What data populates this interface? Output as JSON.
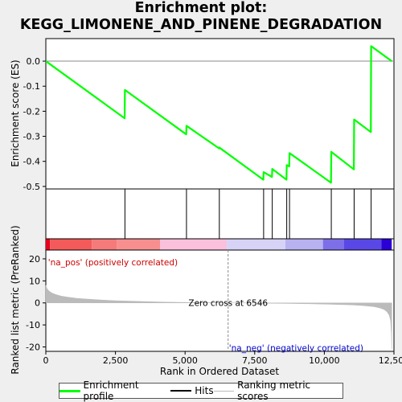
{
  "title_lines": [
    "Enrichment plot:",
    "KEGG_LIMONENE_AND_PINENE_DEGRADATION"
  ],
  "colors": {
    "es_line": "#00ff00",
    "hits": "#000000",
    "metric": "#bbbbbb",
    "pos_label": "#cc0000",
    "neg_label": "#0000cc",
    "zero_line": "#888888"
  },
  "chart_data": {
    "type": "line",
    "x_label": "Rank in Ordered Dataset",
    "y_label_es": "Enrichment score (ES)",
    "y_label_metric": "Ranked list metric (PreRanked)",
    "xlim": [
      0,
      12500
    ],
    "x_ticks": [
      0,
      2500,
      5000,
      7500,
      10000,
      12500
    ],
    "x_tick_labels": [
      "0",
      "2,500",
      "5,000",
      "7,500",
      "10,000",
      "12,500"
    ],
    "es_ylim": [
      -0.51,
      0.09
    ],
    "es_ticks": [
      0.0,
      -0.1,
      -0.2,
      -0.3,
      -0.4,
      -0.5
    ],
    "es_tick_labels": [
      "0.0",
      "-0.1",
      "-0.2",
      "-0.3",
      "-0.4",
      "-0.5"
    ],
    "metric_ylim": [
      -22,
      24
    ],
    "metric_ticks": [
      20,
      10,
      0,
      -10,
      -20
    ],
    "metric_tick_labels": [
      "20",
      "10",
      "0",
      "-10",
      "-20"
    ],
    "n_genes": 12420,
    "zero_cross": 6546,
    "hits": [
      2840,
      5050,
      6230,
      7820,
      8130,
      8650,
      8750,
      10250,
      11070,
      11680
    ],
    "es_curve": [
      [
        0,
        0.0
      ],
      [
        2830,
        -0.228
      ],
      [
        2840,
        -0.115
      ],
      [
        5040,
        -0.292
      ],
      [
        5050,
        -0.258
      ],
      [
        6220,
        -0.348
      ],
      [
        6230,
        -0.345
      ],
      [
        7810,
        -0.473
      ],
      [
        7820,
        -0.443
      ],
      [
        8120,
        -0.462
      ],
      [
        8130,
        -0.43
      ],
      [
        8640,
        -0.473
      ],
      [
        8650,
        -0.415
      ],
      [
        8740,
        -0.42
      ],
      [
        8750,
        -0.367
      ],
      [
        10240,
        -0.485
      ],
      [
        10250,
        -0.362
      ],
      [
        11060,
        -0.432
      ],
      [
        11070,
        -0.233
      ],
      [
        11670,
        -0.283
      ],
      [
        11680,
        0.06
      ],
      [
        12420,
        0.0
      ]
    ],
    "metric_profile": [
      [
        0,
        8.0
      ],
      [
        40,
        6.5
      ],
      [
        100,
        5.5
      ],
      [
        200,
        4.6
      ],
      [
        350,
        3.8
      ],
      [
        550,
        3.1
      ],
      [
        800,
        2.6
      ],
      [
        1100,
        2.1
      ],
      [
        1500,
        1.7
      ],
      [
        2000,
        1.3
      ],
      [
        2500,
        1.0
      ],
      [
        3000,
        0.8
      ],
      [
        3500,
        0.6
      ],
      [
        4000,
        0.45
      ],
      [
        4500,
        0.3
      ],
      [
        5000,
        0.2
      ],
      [
        5500,
        0.12
      ],
      [
        6000,
        0.05
      ],
      [
        6546,
        0.0
      ],
      [
        7000,
        -0.05
      ],
      [
        7500,
        -0.1
      ],
      [
        8000,
        -0.15
      ],
      [
        8500,
        -0.22
      ],
      [
        9000,
        -0.3
      ],
      [
        9500,
        -0.4
      ],
      [
        10000,
        -0.55
      ],
      [
        10500,
        -0.7
      ],
      [
        11000,
        -0.9
      ],
      [
        11400,
        -1.2
      ],
      [
        11800,
        -1.7
      ],
      [
        12000,
        -2.3
      ],
      [
        12150,
        -3.0
      ],
      [
        12250,
        -4.0
      ],
      [
        12330,
        -5.5
      ],
      [
        12380,
        -8.0
      ],
      [
        12410,
        -14.0
      ],
      [
        12420,
        -21.0
      ]
    ],
    "heatmap_segments": [
      [
        0,
        150,
        "#e8001e"
      ],
      [
        150,
        1650,
        "#f45a5a"
      ],
      [
        1650,
        2550,
        "#f57a7a"
      ],
      [
        2550,
        4100,
        "#f78f8f"
      ],
      [
        4100,
        6500,
        "#fbc0dc"
      ],
      [
        6500,
        8600,
        "#d6d3f6"
      ],
      [
        8600,
        9950,
        "#b8b2f0"
      ],
      [
        9950,
        10700,
        "#7d6fe8"
      ],
      [
        10700,
        12050,
        "#5a48e6"
      ],
      [
        12050,
        12420,
        "#2a00d6"
      ]
    ],
    "annotations": {
      "pos": "'na_pos' (positively correlated)",
      "neg": "'na_neg' (negatively correlated)",
      "zero": "Zero cross at 6546"
    }
  },
  "legend": {
    "es": "Enrichment profile",
    "hits": "Hits",
    "metric": "Ranking metric scores"
  }
}
